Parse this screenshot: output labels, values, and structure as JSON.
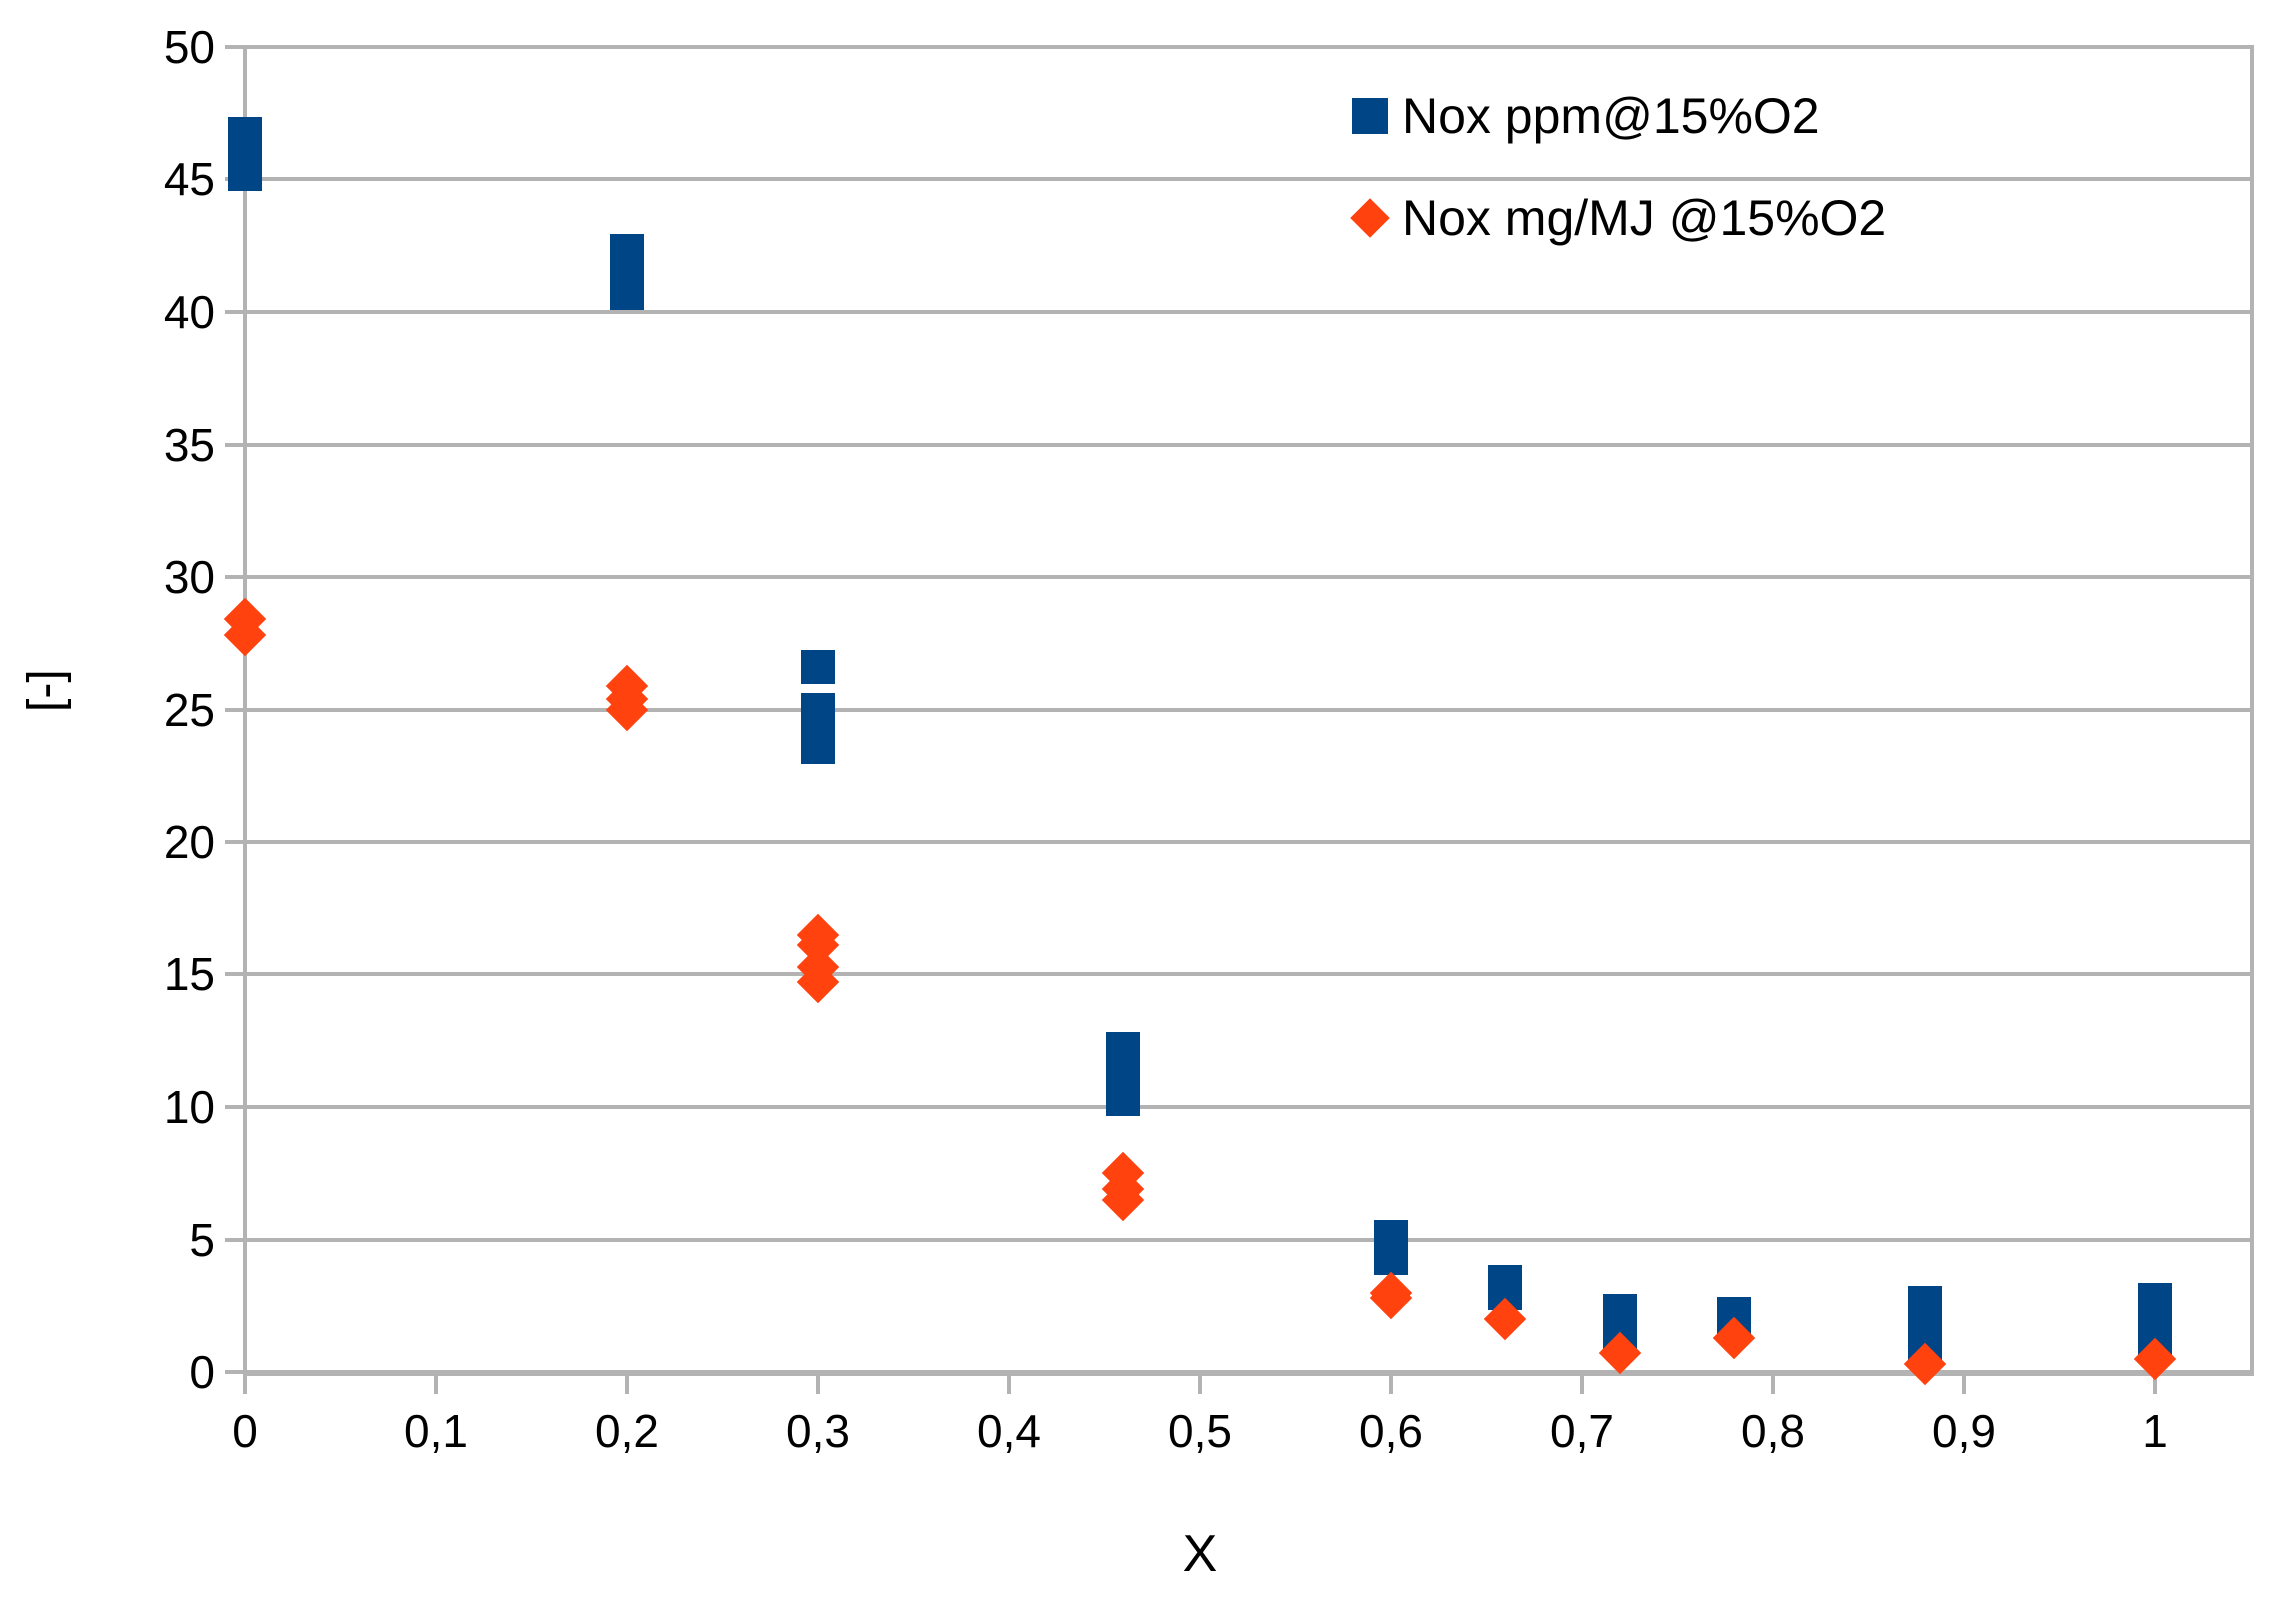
{
  "chart": {
    "y_axis_title": "[-]",
    "x_axis_title": "X",
    "colors": {
      "series1_blue": "#004586",
      "series2_orange": "#ff420e",
      "grid": "#b3b3b3",
      "text": "#000000",
      "background": "#ffffff"
    },
    "legend": [
      {
        "label": "Nox ppm@15%O2",
        "marker": "square-icon",
        "color": "#004586"
      },
      {
        "label": "Nox mg/MJ @15%O2",
        "marker": "diamond-icon",
        "color": "#ff420e"
      }
    ]
  },
  "chart_data": {
    "type": "scatter",
    "title": "",
    "xlabel": "X",
    "ylabel": "[-]",
    "xlim": [
      0,
      1.05
    ],
    "ylim": [
      0,
      50
    ],
    "grid": true,
    "legend_position": "top-right-inside",
    "x_ticks": [
      0,
      0.1,
      0.2,
      0.3,
      0.4,
      0.5,
      0.6,
      0.7,
      0.8,
      0.9,
      1.0
    ],
    "x_tick_labels": [
      "0",
      "0,1",
      "0,2",
      "0,3",
      "0,4",
      "0,5",
      "0,6",
      "0,7",
      "0,8",
      "0,9",
      "1"
    ],
    "y_ticks": [
      0,
      5,
      10,
      15,
      20,
      25,
      30,
      35,
      40,
      45,
      50
    ],
    "y_tick_labels": [
      "0",
      "5",
      "10",
      "15",
      "20",
      "25",
      "30",
      "35",
      "40",
      "45",
      "50"
    ],
    "series": [
      {
        "name": "Nox ppm@15%O2",
        "marker": "square",
        "color": "#004586",
        "points": [
          [
            0,
            45.2
          ],
          [
            0,
            45.8
          ],
          [
            0,
            46.3
          ],
          [
            0,
            46.7
          ],
          [
            0.2,
            40.7
          ],
          [
            0.2,
            41.2
          ],
          [
            0.2,
            41.8
          ],
          [
            0.2,
            42.3
          ],
          [
            0.3,
            26.6
          ],
          [
            0.3,
            25.0
          ],
          [
            0.3,
            24.3
          ],
          [
            0.3,
            23.6
          ],
          [
            0.46,
            12.2
          ],
          [
            0.46,
            11.9
          ],
          [
            0.46,
            10.6
          ],
          [
            0.46,
            10.3
          ],
          [
            0.6,
            5.1
          ],
          [
            0.6,
            4.7
          ],
          [
            0.6,
            4.3
          ],
          [
            0.66,
            3.4
          ],
          [
            0.66,
            3.0
          ],
          [
            0.72,
            2.3
          ],
          [
            0.72,
            1.9
          ],
          [
            0.72,
            1.5
          ],
          [
            0.78,
            2.2
          ],
          [
            0.78,
            1.8
          ],
          [
            0.88,
            2.6
          ],
          [
            0.88,
            1.7
          ],
          [
            0.88,
            0.9
          ],
          [
            1.0,
            2.7
          ],
          [
            1.0,
            2.0
          ],
          [
            1.0,
            1.3
          ]
        ]
      },
      {
        "name": "Nox mg/MJ @15%O2",
        "marker": "diamond",
        "color": "#ff420e",
        "points": [
          [
            0,
            28.4
          ],
          [
            0,
            27.8
          ],
          [
            0.2,
            25.9
          ],
          [
            0.2,
            25.4
          ],
          [
            0.2,
            25.0
          ],
          [
            0.3,
            16.5
          ],
          [
            0.3,
            16.1
          ],
          [
            0.3,
            15.3
          ],
          [
            0.3,
            14.7
          ],
          [
            0.46,
            7.5
          ],
          [
            0.46,
            6.9
          ],
          [
            0.46,
            6.5
          ],
          [
            0.6,
            3.0
          ],
          [
            0.6,
            2.8
          ],
          [
            0.66,
            2.0
          ],
          [
            0.72,
            0.7
          ],
          [
            0.78,
            1.3
          ],
          [
            0.88,
            0.3
          ],
          [
            1.0,
            0.5
          ]
        ]
      }
    ]
  }
}
